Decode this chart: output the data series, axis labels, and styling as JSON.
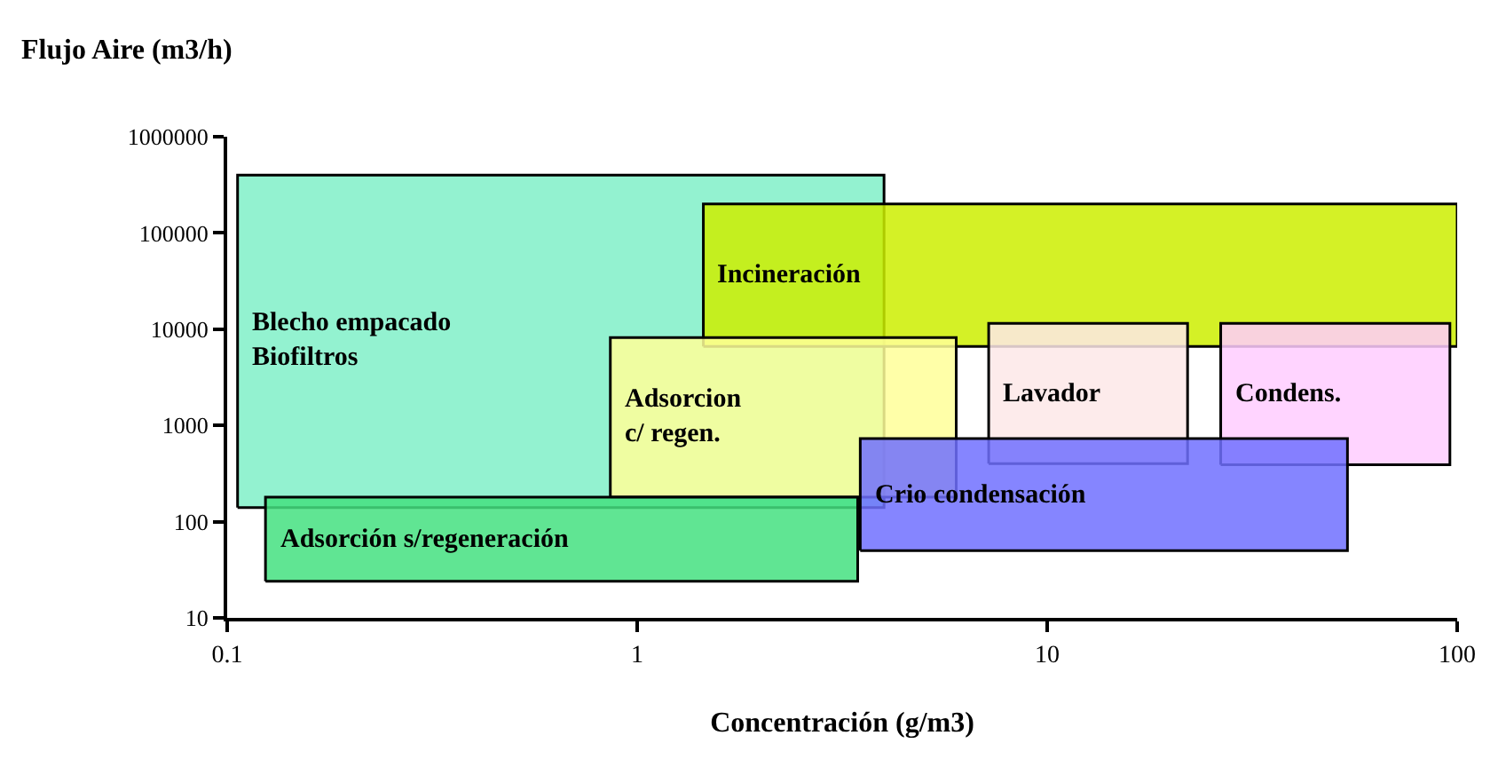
{
  "chart_data": {
    "type": "area",
    "ylabel": "Flujo Aire (m3/h)",
    "xlabel": "Concentración (g/m3)",
    "log": "xy",
    "xlim": [
      0.1,
      100
    ],
    "xticks": [
      0.1,
      1,
      10,
      100
    ],
    "ylim": [
      10,
      1000000
    ],
    "yticks": [
      10,
      100,
      1000,
      10000,
      100000,
      1000000
    ],
    "legend": false,
    "series": [
      {
        "name": "Blecho empacado\nBiofiltros",
        "color": "#80f0c8",
        "x": [
          0.106,
          4,
          4,
          0.106,
          0.106
        ],
        "values": [
          140,
          140,
          400000,
          400000,
          140
        ]
      },
      {
        "name": "Incineración",
        "color": "#ccee00",
        "x": [
          1.45,
          100,
          100,
          1.45,
          1.45
        ],
        "values": [
          6600,
          6600,
          200000,
          200000,
          6600
        ]
      },
      {
        "name": "Adsorcion\nc/ regen.",
        "color": "#ffff99",
        "x": [
          0.86,
          6,
          6,
          0.86,
          0.86
        ],
        "values": [
          180,
          180,
          8200,
          8200,
          180
        ]
      },
      {
        "name": "Lavador",
        "color": "#fde8e8",
        "x": [
          7.2,
          22,
          22,
          7.2,
          7.2
        ],
        "values": [
          400,
          400,
          11500,
          11500,
          400
        ]
      },
      {
        "name": "Condens.",
        "color": "#ffccff",
        "x": [
          26.5,
          96,
          96,
          26.5,
          26.5
        ],
        "values": [
          390,
          390,
          11500,
          11500,
          390
        ]
      },
      {
        "name": "Crio condensación",
        "color": "#7070ff",
        "x": [
          3.5,
          54,
          54,
          3.5,
          3.5
        ],
        "values": [
          50,
          50,
          730,
          730,
          50
        ]
      },
      {
        "name": "Adsorción s/regeneración",
        "color": "#44e080",
        "x": [
          0.124,
          3.45,
          3.45,
          0.124,
          0.124
        ],
        "values": [
          24,
          24,
          180,
          180,
          24
        ]
      }
    ]
  }
}
